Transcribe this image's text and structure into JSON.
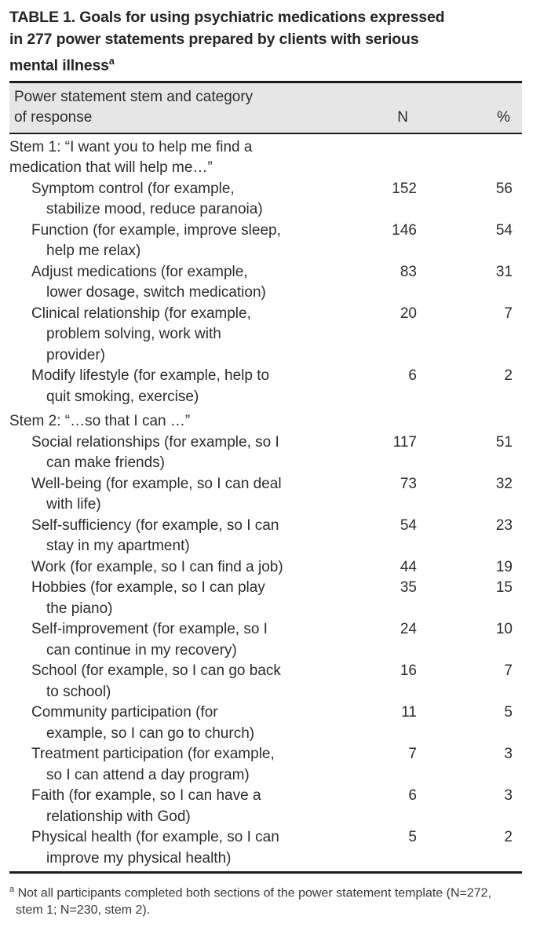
{
  "colors": {
    "text": "#2e2d2b",
    "header_background": "#e6e6e6",
    "rule": "#1b1b1b",
    "page_background": "#ffffff"
  },
  "table": {
    "title": {
      "lines": [
        "TABLE 1. Goals for using psychiatric medications expressed",
        "in 277 power statements prepared by clients with serious",
        "mental illness"
      ],
      "footnote_marker": "a"
    },
    "header": {
      "category_lines": [
        "Power statement stem and category",
        "of response"
      ],
      "n_label": "N",
      "pct_label": "%"
    },
    "sections": [
      {
        "stem_lines": [
          "Stem 1: “I want you to help me find a",
          "medication that will help me…”"
        ],
        "rows": [
          {
            "category_lines": [
              "Symptom control (for example,",
              "stabilize mood, reduce paranoia)"
            ],
            "n": "152",
            "pct": "56"
          },
          {
            "category_lines": [
              "Function (for example, improve sleep,",
              "help me relax)"
            ],
            "n": "146",
            "pct": "54"
          },
          {
            "category_lines": [
              "Adjust medications (for example,",
              "lower dosage, switch medication)"
            ],
            "n": "83",
            "pct": "31"
          },
          {
            "category_lines": [
              "Clinical relationship (for example,",
              "problem solving, work with",
              "provider)"
            ],
            "n": "20",
            "pct": "7"
          },
          {
            "category_lines": [
              "Modify lifestyle (for example, help to",
              "quit smoking, exercise)"
            ],
            "n": "6",
            "pct": "2"
          }
        ]
      },
      {
        "stem_lines": [
          "Stem 2: “…so that I can …”"
        ],
        "rows": [
          {
            "category_lines": [
              "Social relationships (for example, so I",
              "can make friends)"
            ],
            "n": "117",
            "pct": "51"
          },
          {
            "category_lines": [
              "Well-being (for example, so I can deal",
              "with life)"
            ],
            "n": "73",
            "pct": "32"
          },
          {
            "category_lines": [
              "Self-sufficiency (for example, so I can",
              "stay in my apartment)"
            ],
            "n": "54",
            "pct": "23"
          },
          {
            "category_lines": [
              "Work (for example, so I can find a job)"
            ],
            "n": "44",
            "pct": "19"
          },
          {
            "category_lines": [
              "Hobbies (for example, so I can play",
              "the piano)"
            ],
            "n": "35",
            "pct": "15"
          },
          {
            "category_lines": [
              "Self-improvement (for example, so I",
              "can continue in my recovery)"
            ],
            "n": "24",
            "pct": "10"
          },
          {
            "category_lines": [
              "School (for example, so I can go back",
              "to school)"
            ],
            "n": "16",
            "pct": "7"
          },
          {
            "category_lines": [
              "Community participation (for",
              "example, so I can go to church)"
            ],
            "n": "11",
            "pct": "5"
          },
          {
            "category_lines": [
              "Treatment participation (for example,",
              "so I can attend a day program)"
            ],
            "n": "7",
            "pct": "3"
          },
          {
            "category_lines": [
              "Faith (for example, so I can have a",
              "relationship with God)"
            ],
            "n": "6",
            "pct": "3"
          },
          {
            "category_lines": [
              "Physical health (for example, so I can",
              "improve my physical health)"
            ],
            "n": "5",
            "pct": "2"
          }
        ]
      }
    ],
    "footnote": {
      "marker": "a",
      "text": "Not all participants completed both sections of the power statement template (N=272, stem 1; N=230, stem 2)."
    }
  }
}
